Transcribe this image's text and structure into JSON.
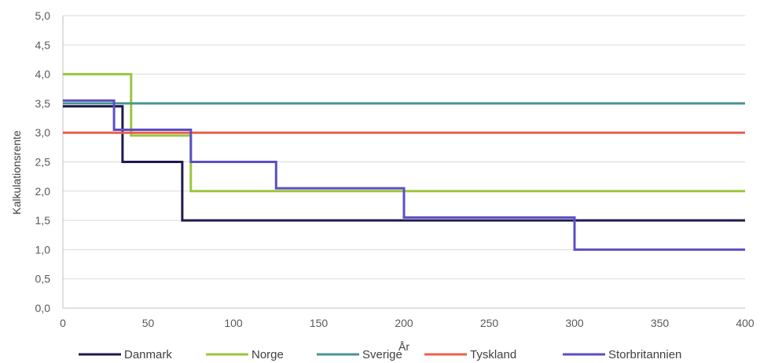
{
  "chart_data": {
    "type": "line",
    "title": "",
    "xlabel": "År",
    "ylabel": "Kalkulationsrente",
    "xlim": [
      0,
      400
    ],
    "ylim": [
      0,
      5
    ],
    "x_ticks": [
      0,
      50,
      100,
      150,
      200,
      250,
      300,
      350,
      400
    ],
    "y_ticks": [
      0,
      0.5,
      1,
      1.5,
      2,
      2.5,
      3,
      3.5,
      4,
      4.5,
      5
    ],
    "y_tick_labels": [
      "0,0",
      "0,5",
      "1,0",
      "1,5",
      "2,0",
      "2,5",
      "3,0",
      "3,5",
      "4,0",
      "4,5",
      "5,0"
    ],
    "grid": "horizontal",
    "legend_position": "bottom",
    "series": [
      {
        "name": "Danmark",
        "color": "#1f1a4d",
        "step_points": [
          [
            0,
            3.45
          ],
          [
            35,
            3.45
          ],
          [
            35,
            2.5
          ],
          [
            70,
            2.5
          ],
          [
            70,
            1.5
          ],
          [
            400,
            1.5
          ]
        ]
      },
      {
        "name": "Norge",
        "color": "#9bc53d",
        "step_points": [
          [
            0,
            4.0
          ],
          [
            40,
            4.0
          ],
          [
            40,
            2.95
          ],
          [
            75,
            2.95
          ],
          [
            75,
            2.0
          ],
          [
            400,
            2.0
          ]
        ]
      },
      {
        "name": "Sverige",
        "color": "#4a9490",
        "step_points": [
          [
            0,
            3.5
          ],
          [
            400,
            3.5
          ]
        ]
      },
      {
        "name": "Tyskland",
        "color": "#e8604c",
        "step_points": [
          [
            0,
            3.0
          ],
          [
            400,
            3.0
          ]
        ]
      },
      {
        "name": "Storbritannien",
        "color": "#5b4fc4",
        "step_points": [
          [
            0,
            3.55
          ],
          [
            30,
            3.55
          ],
          [
            30,
            3.05
          ],
          [
            75,
            3.05
          ],
          [
            75,
            2.5
          ],
          [
            125,
            2.5
          ],
          [
            125,
            2.05
          ],
          [
            200,
            2.05
          ],
          [
            200,
            1.55
          ],
          [
            300,
            1.55
          ],
          [
            300,
            1.0
          ],
          [
            400,
            1.0
          ]
        ]
      }
    ]
  }
}
